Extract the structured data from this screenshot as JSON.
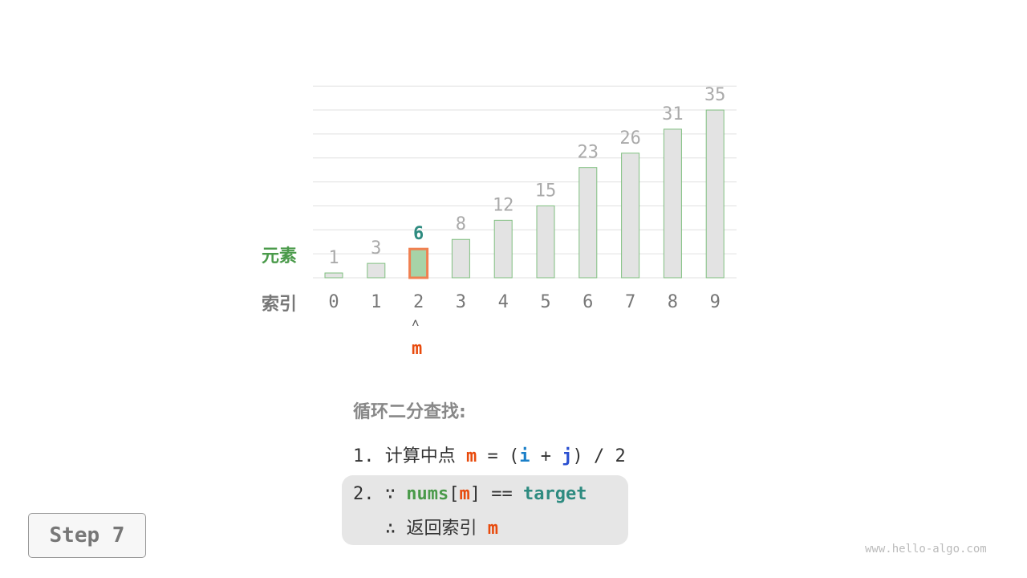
{
  "chart_data": {
    "type": "bar",
    "indices": [
      "0",
      "1",
      "2",
      "3",
      "4",
      "5",
      "6",
      "7",
      "8",
      "9"
    ],
    "values": [
      1,
      3,
      6,
      8,
      12,
      15,
      23,
      26,
      31,
      35
    ],
    "highlight_index": 2,
    "ylim": [
      0,
      40
    ],
    "row_label_values": "元素",
    "row_label_index": "索引"
  },
  "pointer": {
    "arrow": "˄",
    "label": "m"
  },
  "steps": {
    "title": "循环二分查找:",
    "line1": {
      "num": "1.",
      "text": "计算中点",
      "m": "m",
      "eq": "=",
      "lp": "(",
      "i": "i",
      "plus": "+",
      "j": "j",
      "rp": ")",
      "div": "/ 2"
    },
    "line2": {
      "num": "2.",
      "because": "∵",
      "nums": "nums",
      "lb": "[",
      "m": "m",
      "rb": "]",
      "eqeq": "==",
      "target": "target"
    },
    "line3": {
      "therefore": "∴",
      "text": "返回索引",
      "m": "m"
    }
  },
  "step_button": "Step 7",
  "watermark": "www.hello-algo.com",
  "colors": {
    "bar_fill": "#e3e3e3",
    "bar_stroke": "#7fbf7f",
    "highlight_fill": "#a7d3a7",
    "highlight_stroke": "#f08050",
    "m": "#e84a0c",
    "i": "#1a7fc8",
    "j": "#2a4fd0",
    "nums": "#4a9a4a",
    "target": "#2e8b80",
    "value_label": "#aaa",
    "highlight_label": "#2e8b80"
  }
}
